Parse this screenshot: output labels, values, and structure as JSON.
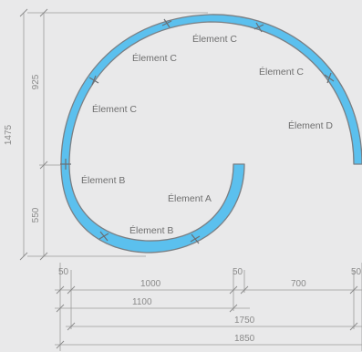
{
  "diagram": {
    "background_color": "#e9e9ea",
    "band_color": "#5bc0ee",
    "outline_color": "#7a7f84",
    "element_labels": [
      "Élement C",
      "Élement C",
      "Élement C",
      "Élement C",
      "Élement D",
      "Élement B",
      "Élement A",
      "Élement B"
    ],
    "vertical_dims": {
      "total": "1475",
      "upper": "925",
      "lower": "550"
    },
    "horizontal_dims": {
      "row1": [
        "50",
        "1000",
        "50",
        "700",
        "50"
      ],
      "row2": "1100",
      "row3": "1750",
      "row4": "1850"
    }
  }
}
